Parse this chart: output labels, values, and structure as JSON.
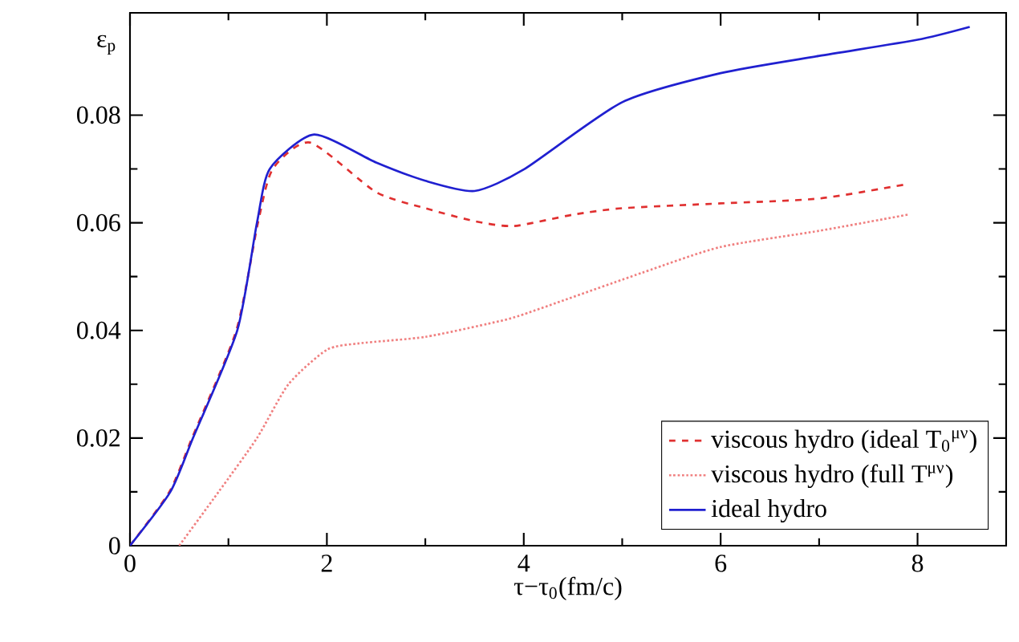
{
  "chart_data": {
    "type": "line",
    "xlabel": "τ−τ$_{0}$(fm/c)",
    "ylabel": "ε$_{p}$",
    "xlim": [
      0,
      8.9
    ],
    "ylim": [
      0,
      0.099
    ],
    "xticks": [
      0,
      2,
      4,
      6,
      8
    ],
    "yticks": [
      0,
      0.02,
      0.04,
      0.06,
      0.08
    ],
    "legend": "bottom right",
    "grid": false,
    "series": [
      {
        "name": "viscous hydro (ideal T$_{0}$$^{μν}$)",
        "color": "#e03030",
        "line_style": "dashed",
        "x": [
          0,
          0.4,
          0.63,
          1.08,
          1.3,
          1.45,
          1.83,
          2.5,
          3,
          3.5,
          3.9,
          4.5,
          5,
          6,
          7,
          7.9
        ],
        "values": [
          0,
          0.01,
          0.02,
          0.04,
          0.06,
          0.07,
          0.0749,
          0.0657,
          0.0627,
          0.0603,
          0.0594,
          0.0615,
          0.0627,
          0.0636,
          0.0645,
          0.0672
        ]
      },
      {
        "name": "viscous hydro (full T$^{μν}$)",
        "color": "#f08080",
        "line_style": "dotted",
        "x": [
          0.5,
          0.9,
          1.29,
          1.61,
          2.0,
          2.33,
          3,
          3.7,
          4,
          5.2,
          6,
          7,
          7.9
        ],
        "values": [
          0,
          0.01,
          0.02,
          0.03,
          0.0364,
          0.0376,
          0.0388,
          0.0415,
          0.043,
          0.0507,
          0.0555,
          0.0585,
          0.0615
        ]
      },
      {
        "name": "ideal hydro",
        "color": "#2020d0",
        "line_style": "solid",
        "x": [
          0,
          0.41,
          0.64,
          1.09,
          1.29,
          1.42,
          1.87,
          2.5,
          3,
          3.5,
          4,
          5,
          6,
          7,
          8,
          8.53
        ],
        "values": [
          0,
          0.01,
          0.02,
          0.04,
          0.06,
          0.07,
          0.0764,
          0.0712,
          0.0678,
          0.0659,
          0.0699,
          0.0824,
          0.0878,
          0.091,
          0.094,
          0.0964
        ]
      }
    ]
  }
}
